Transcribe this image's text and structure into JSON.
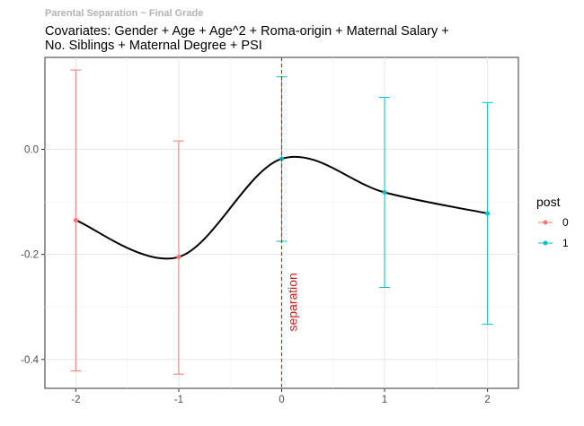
{
  "chart_data": {
    "type": "line",
    "title": "Parental Separation ~ Final Grade",
    "subtitle_lines": [
      "Covariates: Gender + Age + Age^2 + Roma-origin + Maternal Salary +",
      "No. Siblings + Maternal Degree + PSI"
    ],
    "x": [
      -2,
      -1,
      0,
      1,
      2
    ],
    "estimate": [
      -0.135,
      -0.205,
      -0.018,
      -0.082,
      -0.122
    ],
    "ci_low": [
      -0.422,
      -0.428,
      -0.175,
      -0.263,
      -0.333
    ],
    "ci_high": [
      0.151,
      0.016,
      0.138,
      0.099,
      0.089
    ],
    "post": [
      0,
      0,
      1,
      1,
      1
    ],
    "xlim": [
      -2.3,
      2.3
    ],
    "ylim": [
      -0.455,
      0.175
    ],
    "x_ticks": [
      -2,
      -1,
      0,
      1,
      2
    ],
    "y_ticks": [
      0.0,
      -0.2,
      -0.4
    ],
    "y_tick_labels": [
      "0.0",
      "-0.2",
      "-0.4"
    ],
    "vline": {
      "x": 0,
      "label": "separation",
      "color": "#d7191c"
    },
    "legend": {
      "title": "post",
      "placement": "right",
      "entries": [
        {
          "label": "0",
          "color": "#F8766D"
        },
        {
          "label": "1",
          "color": "#00BFC4"
        }
      ]
    },
    "grid": true,
    "smooth_line_color": "#000000"
  }
}
